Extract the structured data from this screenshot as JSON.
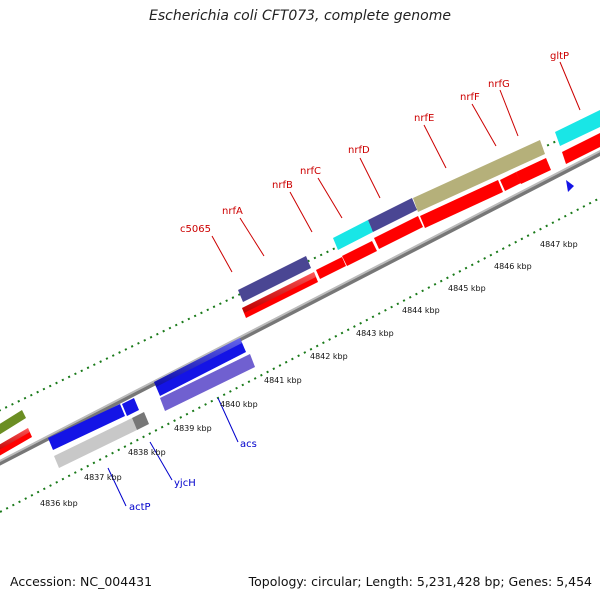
{
  "title": "Escherichia coli CFT073, complete genome",
  "footer": {
    "accession": "Accession: NC_004431",
    "summary": "Topology: circular; Length: 5,231,428 bp; Genes: 5,454"
  },
  "colors": {
    "red_gene": "#ff0000",
    "blue_gene": "#1414e6",
    "slate_gene": "#4a4693",
    "lavender_gene": "#7060d0",
    "olive_gene": "#b5b07a",
    "cyan_gene": "#19e6e6",
    "grey_gene": "#c8c8c8",
    "dark_grey_gene": "#777777",
    "green_gene": "#6b8e23",
    "backbone": "#9a9a9a",
    "tick": "#1a7a1a",
    "red_label": "#cc0000",
    "blue_label": "#0000cc"
  },
  "scale_labels": [
    "4836 kbp",
    "4837 kbp",
    "4838 kbp",
    "4839 kbp",
    "4840 kbp",
    "4841 kbp",
    "4842 kbp",
    "4843 kbp",
    "4844 kbp",
    "4845 kbp",
    "4846 kbp",
    "4847 kbp"
  ],
  "upper_labels": [
    "c5065",
    "nrfA",
    "nrfB",
    "nrfC",
    "nrfD",
    "nrfE",
    "nrfF",
    "nrfG",
    "gltP"
  ],
  "lower_labels": [
    "actP",
    "yjcH",
    "acs"
  ]
}
